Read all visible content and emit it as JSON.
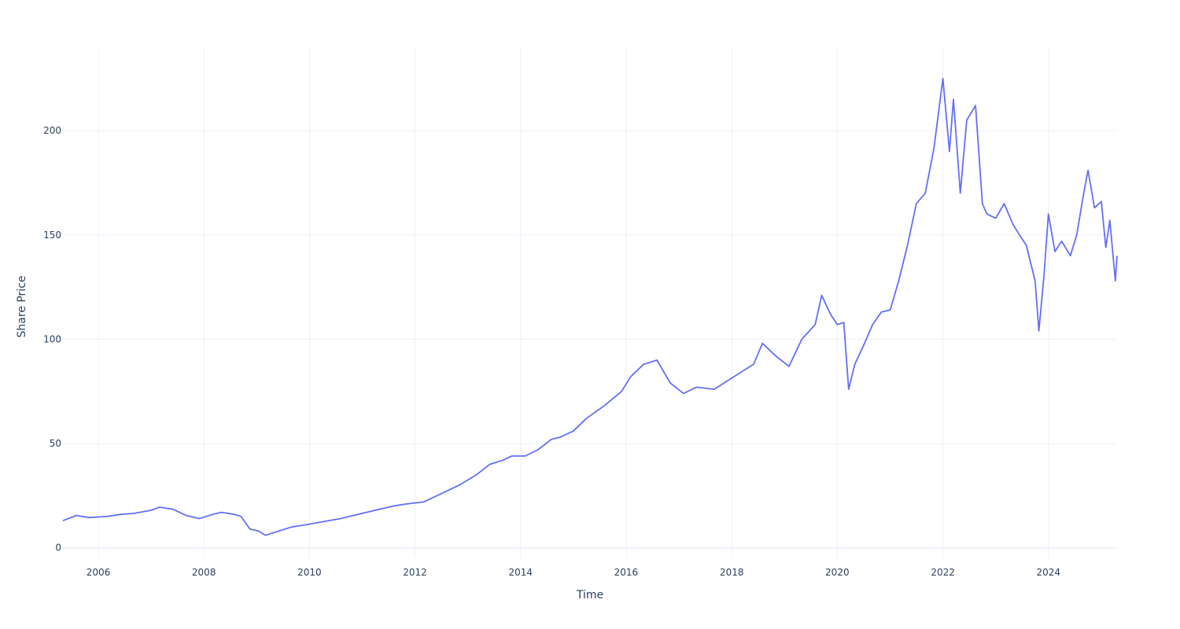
{
  "chart_data": {
    "type": "line",
    "title": "",
    "xlabel": "Time",
    "ylabel": "Share Price",
    "xlim": [
      "2005-05-01",
      "2025-04-20"
    ],
    "ylim": [
      -5,
      240
    ],
    "x_ticks": [
      "2006",
      "2008",
      "2010",
      "2012",
      "2014",
      "2016",
      "2018",
      "2020",
      "2022",
      "2024"
    ],
    "y_ticks": [
      0,
      50,
      100,
      150,
      200
    ],
    "grid": true,
    "legend": "none",
    "colors": {
      "line": "#636efa",
      "grid": "#ebf0f8",
      "text": "#2a3f5f",
      "background": "#ffffff"
    },
    "series": [
      {
        "x": [
          "2005-05-01",
          "2005-08-01",
          "2005-11-01",
          "2006-03-01",
          "2006-06-01",
          "2006-09-01",
          "2007-01-01",
          "2007-03-01",
          "2007-06-01",
          "2007-09-01",
          "2007-12-01",
          "2008-03-01",
          "2008-05-01",
          "2008-08-01",
          "2008-09-15",
          "2008-11-15",
          "2009-01-15",
          "2009-03-01",
          "2009-06-01",
          "2009-09-01",
          "2009-12-01",
          "2010-04-01",
          "2010-08-01",
          "2010-12-01",
          "2011-04-01",
          "2011-08-01",
          "2011-11-01",
          "2012-03-01",
          "2012-07-01",
          "2012-11-01",
          "2013-03-01",
          "2013-06-01",
          "2013-09-01",
          "2013-11-01",
          "2014-02-01",
          "2014-05-01",
          "2014-08-01",
          "2014-10-01",
          "2015-01-01",
          "2015-04-01",
          "2015-08-01",
          "2015-12-01",
          "2016-02-01",
          "2016-05-01",
          "2016-08-01",
          "2016-11-01",
          "2017-02-01",
          "2017-05-01",
          "2017-09-01",
          "2017-12-01",
          "2018-03-01",
          "2018-06-01",
          "2018-08-01",
          "2018-11-01",
          "2019-02-01",
          "2019-05-01",
          "2019-08-01",
          "2019-09-15",
          "2019-11-15",
          "2020-01-01",
          "2020-02-15",
          "2020-03-20",
          "2020-05-01",
          "2020-07-01",
          "2020-09-01",
          "2020-11-01",
          "2021-01-01",
          "2021-03-01",
          "2021-05-01",
          "2021-07-01",
          "2021-09-01",
          "2021-11-01",
          "2022-01-01",
          "2022-02-15",
          "2022-03-15",
          "2022-05-01",
          "2022-06-15",
          "2022-08-15",
          "2022-10-01",
          "2022-11-01",
          "2023-01-01",
          "2023-03-01",
          "2023-05-01",
          "2023-06-15",
          "2023-08-01",
          "2023-10-01",
          "2023-10-27",
          "2023-12-01",
          "2024-01-01",
          "2024-02-15",
          "2024-04-01",
          "2024-06-01",
          "2024-07-15",
          "2024-09-01",
          "2024-10-01",
          "2024-11-15",
          "2025-01-01",
          "2025-02-01",
          "2025-03-01",
          "2025-04-08",
          "2025-04-20"
        ],
        "y": [
          13,
          15.5,
          14.5,
          15,
          16,
          16.5,
          18,
          19.5,
          18.5,
          15.5,
          14,
          16,
          17,
          16,
          15,
          9,
          8,
          6,
          8,
          10,
          11,
          12.5,
          14,
          16,
          18,
          20,
          21,
          22,
          26,
          30,
          35,
          40,
          42,
          44,
          44,
          47,
          52,
          53,
          56,
          62,
          68,
          75,
          82,
          88,
          90,
          79,
          74,
          77,
          76,
          80,
          84,
          88,
          98,
          92,
          87,
          100,
          107,
          121,
          112,
          107,
          108,
          76,
          88,
          97,
          107,
          113,
          114,
          128,
          145,
          165,
          170,
          192,
          225,
          190,
          215,
          170,
          205,
          212,
          165,
          160,
          158,
          165,
          155,
          150,
          145,
          128,
          104,
          130,
          160,
          142,
          147,
          140,
          150,
          170,
          181,
          163,
          166,
          144,
          157,
          128,
          140
        ]
      }
    ]
  }
}
